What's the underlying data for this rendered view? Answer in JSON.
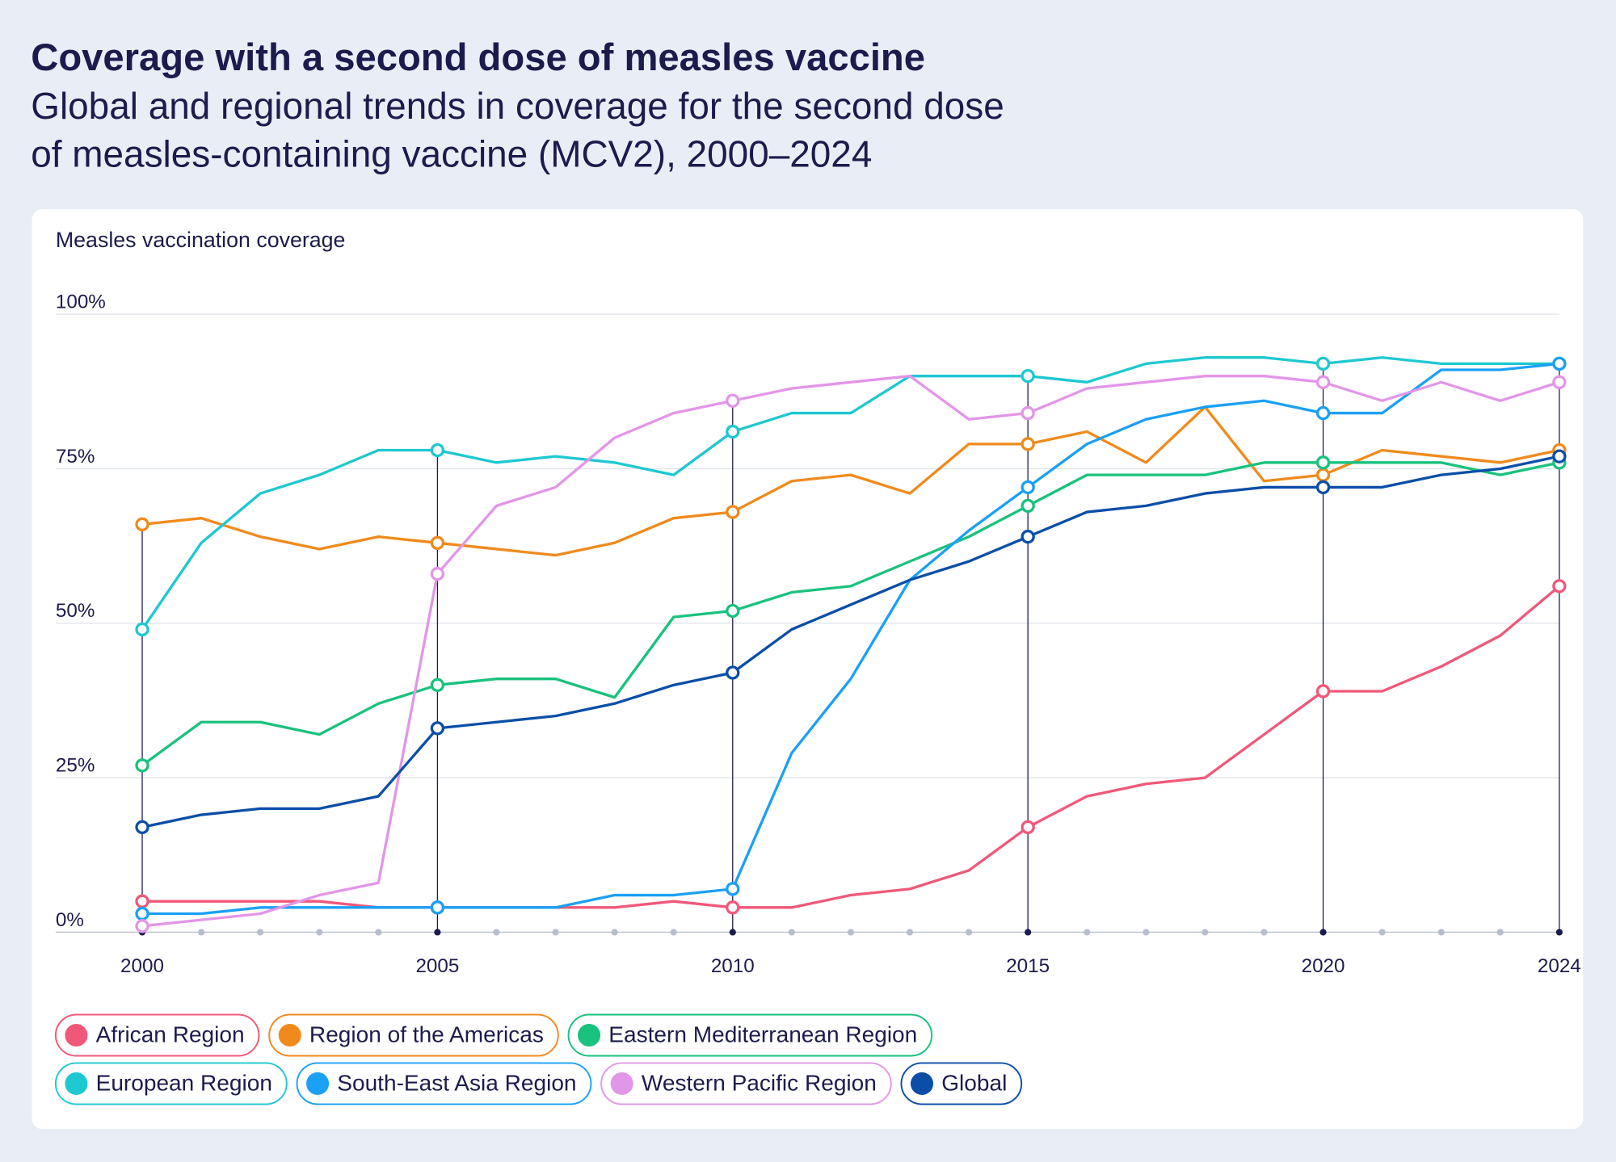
{
  "chart_data": {
    "type": "line",
    "title": "Coverage with a second dose of measles vaccine",
    "subtitle": [
      "Global and regional trends in coverage for the second dose",
      "of measles-containing vaccine (MCV2), 2000–2024"
    ],
    "y_label": "Measles vaccination coverage",
    "x": [
      2000,
      2001,
      2002,
      2003,
      2004,
      2005,
      2006,
      2007,
      2008,
      2009,
      2010,
      2011,
      2012,
      2013,
      2014,
      2015,
      2016,
      2017,
      2018,
      2019,
      2020,
      2021,
      2022,
      2023,
      2024
    ],
    "xlim": [
      2000,
      2024
    ],
    "xticks": [
      2000,
      2005,
      2010,
      2015,
      2020,
      2024
    ],
    "ylim": [
      0,
      100
    ],
    "yticks": [
      {
        "value": 0,
        "label": "0%"
      },
      {
        "value": 25,
        "label": "25%"
      },
      {
        "value": 50,
        "label": "50%"
      },
      {
        "value": 75,
        "label": "75%"
      },
      {
        "value": 100,
        "label": "100%"
      }
    ],
    "grid": true,
    "series": [
      {
        "name": "African Region",
        "color": "#f0587a",
        "values": [
          5,
          5,
          5,
          5,
          4,
          4,
          4,
          4,
          4,
          5,
          4,
          4,
          6,
          7,
          10,
          17,
          22,
          24,
          25,
          32,
          39,
          39,
          43,
          48,
          56
        ]
      },
      {
        "name": "Region of the Americas",
        "color": "#f08a1c",
        "values": [
          66,
          67,
          64,
          62,
          64,
          63,
          62,
          61,
          63,
          67,
          68,
          73,
          74,
          71,
          79,
          79,
          81,
          76,
          85,
          73,
          74,
          78,
          77,
          76,
          78
        ]
      },
      {
        "name": "Eastern Mediterranean Region",
        "color": "#19c27d",
        "values": [
          27,
          34,
          34,
          32,
          37,
          40,
          41,
          41,
          38,
          51,
          52,
          55,
          56,
          60,
          64,
          69,
          74,
          74,
          74,
          76,
          76,
          76,
          76,
          74,
          76
        ]
      },
      {
        "name": "European Region",
        "color": "#1ec8d0",
        "values": [
          49,
          63,
          71,
          74,
          78,
          78,
          76,
          77,
          76,
          74,
          81,
          84,
          84,
          90,
          90,
          90,
          89,
          92,
          93,
          93,
          92,
          93,
          92,
          92,
          92
        ]
      },
      {
        "name": "South-East Asia Region",
        "color": "#1aa0f5",
        "values": [
          3,
          3,
          4,
          4,
          4,
          4,
          4,
          4,
          6,
          6,
          7,
          29,
          41,
          57,
          65,
          72,
          79,
          83,
          85,
          86,
          84,
          84,
          91,
          91,
          92
        ]
      },
      {
        "name": "Western Pacific Region",
        "color": "#e296e8",
        "values": [
          1,
          2,
          3,
          6,
          8,
          58,
          69,
          72,
          80,
          84,
          86,
          88,
          89,
          90,
          83,
          84,
          88,
          89,
          90,
          90,
          89,
          86,
          89,
          86,
          89
        ]
      },
      {
        "name": "Global",
        "color": "#0a4ea8",
        "values": [
          17,
          19,
          20,
          20,
          22,
          33,
          34,
          35,
          37,
          40,
          42,
          49,
          53,
          57,
          60,
          64,
          68,
          69,
          71,
          72,
          72,
          72,
          74,
          75,
          77
        ]
      }
    ]
  }
}
